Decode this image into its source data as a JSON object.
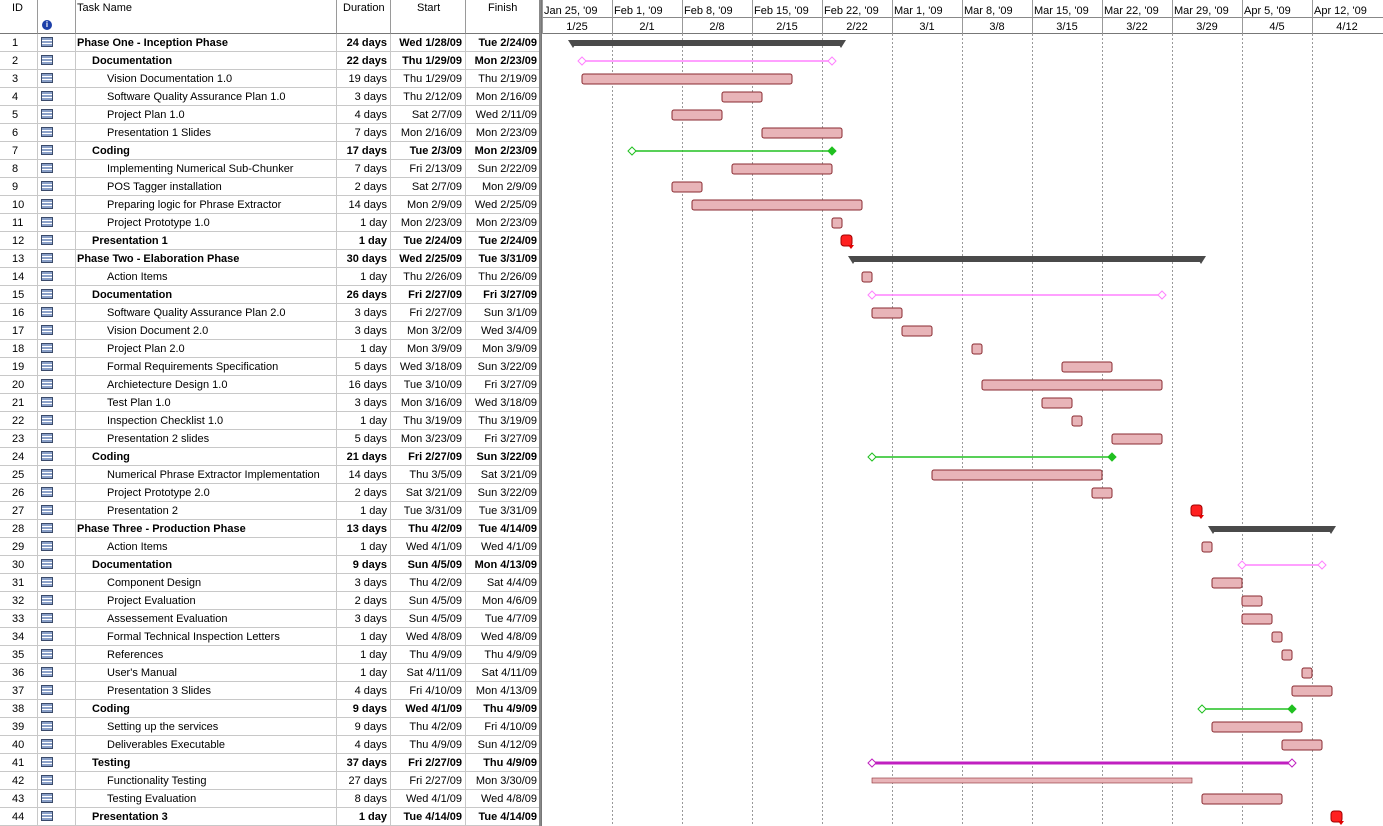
{
  "columns": {
    "id": "ID",
    "name": "Task Name",
    "duration": "Duration",
    "start": "Start",
    "finish": "Finish",
    "info_icon": "info-icon"
  },
  "timescale": {
    "weeks": [
      "Jan 25, '09",
      "Feb 1, '09",
      "Feb 8, '09",
      "Feb 15, '09",
      "Feb 22, '09",
      "Mar 1, '09",
      "Mar 8, '09",
      "Mar 15, '09",
      "Mar 22, '09",
      "Mar 29, '09",
      "Apr 5, '09",
      "Apr 12, '09"
    ],
    "days": [
      "1/25",
      "2/1",
      "2/8",
      "2/15",
      "2/22",
      "3/1",
      "3/8",
      "3/15",
      "3/22",
      "3/29",
      "4/5",
      "4/12"
    ]
  },
  "colors": {
    "task": "#e8b4b8",
    "task_border": "#8a2a30",
    "summary": "#4a4a4a",
    "doc": "#ff80ff",
    "coding": "#20c020",
    "testing": "#c020c0",
    "milestone": "#ff2020",
    "arrow": "#e00000"
  },
  "tasks": [
    {
      "id": "1",
      "name": "Phase One - Inception Phase",
      "duration": "24 days",
      "start": "Wed 1/28/09",
      "finish": "Tue 2/24/09",
      "level": 0,
      "kind": "phase",
      "s": 3,
      "e": 30
    },
    {
      "id": "2",
      "name": "Documentation",
      "duration": "22 days",
      "start": "Thu 1/29/09",
      "finish": "Mon 2/23/09",
      "level": 1,
      "kind": "doc",
      "s": 4,
      "e": 29
    },
    {
      "id": "3",
      "name": "Vision Documentation 1.0",
      "duration": "19 days",
      "start": "Thu 1/29/09",
      "finish": "Thu 2/19/09",
      "level": 2,
      "kind": "task",
      "s": 4,
      "e": 25
    },
    {
      "id": "4",
      "name": "Software Quality Assurance Plan 1.0",
      "duration": "3 days",
      "start": "Thu 2/12/09",
      "finish": "Mon 2/16/09",
      "level": 2,
      "kind": "task",
      "s": 18,
      "e": 22
    },
    {
      "id": "5",
      "name": "Project Plan 1.0",
      "duration": "4 days",
      "start": "Sat 2/7/09",
      "finish": "Wed 2/11/09",
      "level": 2,
      "kind": "task",
      "s": 13,
      "e": 18
    },
    {
      "id": "6",
      "name": "Presentation 1 Slides",
      "duration": "7 days",
      "start": "Mon 2/16/09",
      "finish": "Mon 2/23/09",
      "level": 2,
      "kind": "task",
      "s": 22,
      "e": 30
    },
    {
      "id": "7",
      "name": "Coding",
      "duration": "17 days",
      "start": "Tue 2/3/09",
      "finish": "Mon 2/23/09",
      "level": 1,
      "kind": "coding",
      "s": 9,
      "e": 29
    },
    {
      "id": "8",
      "name": "Implementing Numerical Sub-Chunker",
      "duration": "7 days",
      "start": "Fri 2/13/09",
      "finish": "Sun 2/22/09",
      "level": 2,
      "kind": "task",
      "s": 19,
      "e": 29
    },
    {
      "id": "9",
      "name": "POS Tagger installation",
      "duration": "2 days",
      "start": "Sat 2/7/09",
      "finish": "Mon 2/9/09",
      "level": 2,
      "kind": "task",
      "s": 13,
      "e": 16
    },
    {
      "id": "10",
      "name": "Preparing logic for Phrase Extractor",
      "duration": "14 days",
      "start": "Mon 2/9/09",
      "finish": "Wed 2/25/09",
      "level": 2,
      "kind": "task",
      "s": 15,
      "e": 32
    },
    {
      "id": "11",
      "name": "Project Prototype 1.0",
      "duration": "1 day",
      "start": "Mon 2/23/09",
      "finish": "Mon 2/23/09",
      "level": 2,
      "kind": "task",
      "s": 29,
      "e": 30
    },
    {
      "id": "12",
      "name": "Presentation 1",
      "duration": "1 day",
      "start": "Tue 2/24/09",
      "finish": "Tue 2/24/09",
      "level": 1,
      "kind": "milestone",
      "s": 30,
      "e": 31
    },
    {
      "id": "13",
      "name": "Phase Two - Elaboration Phase",
      "duration": "30 days",
      "start": "Wed 2/25/09",
      "finish": "Tue 3/31/09",
      "level": 0,
      "kind": "phase",
      "s": 31,
      "e": 66
    },
    {
      "id": "14",
      "name": "Action Items",
      "duration": "1 day",
      "start": "Thu 2/26/09",
      "finish": "Thu 2/26/09",
      "level": 2,
      "kind": "task",
      "s": 32,
      "e": 33
    },
    {
      "id": "15",
      "name": "Documentation",
      "duration": "26 days",
      "start": "Fri 2/27/09",
      "finish": "Fri 3/27/09",
      "level": 1,
      "kind": "doc",
      "s": 33,
      "e": 62
    },
    {
      "id": "16",
      "name": "Software Quality Assurance Plan 2.0",
      "duration": "3 days",
      "start": "Fri 2/27/09",
      "finish": "Sun 3/1/09",
      "level": 2,
      "kind": "task",
      "s": 33,
      "e": 36
    },
    {
      "id": "17",
      "name": "Vision Document 2.0",
      "duration": "3 days",
      "start": "Mon 3/2/09",
      "finish": "Wed 3/4/09",
      "level": 2,
      "kind": "task",
      "s": 36,
      "e": 39
    },
    {
      "id": "18",
      "name": "Project Plan 2.0",
      "duration": "1 day",
      "start": "Mon 3/9/09",
      "finish": "Mon 3/9/09",
      "level": 2,
      "kind": "task",
      "s": 43,
      "e": 44
    },
    {
      "id": "19",
      "name": "Formal Requirements Specification",
      "duration": "5 days",
      "start": "Wed 3/18/09",
      "finish": "Sun 3/22/09",
      "level": 2,
      "kind": "task",
      "s": 52,
      "e": 57
    },
    {
      "id": "20",
      "name": "Archietecture Design 1.0",
      "duration": "16 days",
      "start": "Tue 3/10/09",
      "finish": "Fri 3/27/09",
      "level": 2,
      "kind": "task",
      "s": 44,
      "e": 62
    },
    {
      "id": "21",
      "name": "Test Plan 1.0",
      "duration": "3 days",
      "start": "Mon 3/16/09",
      "finish": "Wed 3/18/09",
      "level": 2,
      "kind": "task",
      "s": 50,
      "e": 53
    },
    {
      "id": "22",
      "name": "Inspection Checklist 1.0",
      "duration": "1 day",
      "start": "Thu 3/19/09",
      "finish": "Thu 3/19/09",
      "level": 2,
      "kind": "task",
      "s": 53,
      "e": 54
    },
    {
      "id": "23",
      "name": "Presentation 2 slides",
      "duration": "5 days",
      "start": "Mon 3/23/09",
      "finish": "Fri 3/27/09",
      "level": 2,
      "kind": "task",
      "s": 57,
      "e": 62
    },
    {
      "id": "24",
      "name": "Coding",
      "duration": "21 days",
      "start": "Fri 2/27/09",
      "finish": "Sun 3/22/09",
      "level": 1,
      "kind": "coding",
      "s": 33,
      "e": 57
    },
    {
      "id": "25",
      "name": "Numerical Phrase Extractor Implementation",
      "duration": "14 days",
      "start": "Thu 3/5/09",
      "finish": "Sat 3/21/09",
      "level": 2,
      "kind": "task",
      "s": 39,
      "e": 56
    },
    {
      "id": "26",
      "name": "Project Prototype 2.0",
      "duration": "2 days",
      "start": "Sat 3/21/09",
      "finish": "Sun 3/22/09",
      "level": 2,
      "kind": "task",
      "s": 55,
      "e": 57
    },
    {
      "id": "27",
      "name": "Presentation 2",
      "duration": "1 day",
      "start": "Tue 3/31/09",
      "finish": "Tue 3/31/09",
      "level": 2,
      "kind": "milestone",
      "s": 65,
      "e": 66
    },
    {
      "id": "28",
      "name": "Phase Three - Production Phase",
      "duration": "13 days",
      "start": "Thu 4/2/09",
      "finish": "Tue 4/14/09",
      "level": 0,
      "kind": "phase",
      "s": 67,
      "e": 79
    },
    {
      "id": "29",
      "name": "Action Items",
      "duration": "1 day",
      "start": "Wed 4/1/09",
      "finish": "Wed 4/1/09",
      "level": 2,
      "kind": "task",
      "s": 66,
      "e": 67
    },
    {
      "id": "30",
      "name": "Documentation",
      "duration": "9 days",
      "start": "Sun 4/5/09",
      "finish": "Mon 4/13/09",
      "level": 1,
      "kind": "doc",
      "s": 70,
      "e": 78
    },
    {
      "id": "31",
      "name": "Component Design",
      "duration": "3 days",
      "start": "Thu 4/2/09",
      "finish": "Sat 4/4/09",
      "level": 2,
      "kind": "task",
      "s": 67,
      "e": 70
    },
    {
      "id": "32",
      "name": "Project Evaluation",
      "duration": "2 days",
      "start": "Sun 4/5/09",
      "finish": "Mon 4/6/09",
      "level": 2,
      "kind": "task",
      "s": 70,
      "e": 72
    },
    {
      "id": "33",
      "name": "Assessement Evaluation",
      "duration": "3 days",
      "start": "Sun 4/5/09",
      "finish": "Tue 4/7/09",
      "level": 2,
      "kind": "task",
      "s": 70,
      "e": 73
    },
    {
      "id": "34",
      "name": "Formal Technical Inspection Letters",
      "duration": "1 day",
      "start": "Wed 4/8/09",
      "finish": "Wed 4/8/09",
      "level": 2,
      "kind": "task",
      "s": 73,
      "e": 74
    },
    {
      "id": "35",
      "name": "References",
      "duration": "1 day",
      "start": "Thu 4/9/09",
      "finish": "Thu 4/9/09",
      "level": 2,
      "kind": "task",
      "s": 74,
      "e": 75
    },
    {
      "id": "36",
      "name": "User's Manual",
      "duration": "1 day",
      "start": "Sat 4/11/09",
      "finish": "Sat 4/11/09",
      "level": 2,
      "kind": "task",
      "s": 76,
      "e": 77
    },
    {
      "id": "37",
      "name": "Presentation 3 Slides",
      "duration": "4 days",
      "start": "Fri 4/10/09",
      "finish": "Mon 4/13/09",
      "level": 2,
      "kind": "task",
      "s": 75,
      "e": 79
    },
    {
      "id": "38",
      "name": "Coding",
      "duration": "9 days",
      "start": "Wed 4/1/09",
      "finish": "Thu 4/9/09",
      "level": 1,
      "kind": "coding",
      "s": 66,
      "e": 75
    },
    {
      "id": "39",
      "name": "Setting up the services",
      "duration": "9 days",
      "start": "Thu 4/2/09",
      "finish": "Fri 4/10/09",
      "level": 2,
      "kind": "task",
      "s": 67,
      "e": 76
    },
    {
      "id": "40",
      "name": "Deliverables Executable",
      "duration": "4 days",
      "start": "Thu 4/9/09",
      "finish": "Sun 4/12/09",
      "level": 2,
      "kind": "task",
      "s": 74,
      "e": 78
    },
    {
      "id": "41",
      "name": "Testing",
      "duration": "37 days",
      "start": "Fri 2/27/09",
      "finish": "Thu 4/9/09",
      "level": 1,
      "kind": "testing",
      "s": 33,
      "e": 75
    },
    {
      "id": "42",
      "name": "Functionality Testing",
      "duration": "27 days",
      "start": "Fri 2/27/09",
      "finish": "Mon 3/30/09",
      "level": 2,
      "kind": "thin",
      "s": 33,
      "e": 65
    },
    {
      "id": "43",
      "name": "Testing Evaluation",
      "duration": "8 days",
      "start": "Wed 4/1/09",
      "finish": "Wed 4/8/09",
      "level": 2,
      "kind": "task",
      "s": 66,
      "e": 74
    },
    {
      "id": "44",
      "name": "Presentation 3",
      "duration": "1 day",
      "start": "Tue 4/14/09",
      "finish": "Tue 4/14/09",
      "level": 1,
      "kind": "milestone",
      "s": 79,
      "e": 80
    }
  ]
}
